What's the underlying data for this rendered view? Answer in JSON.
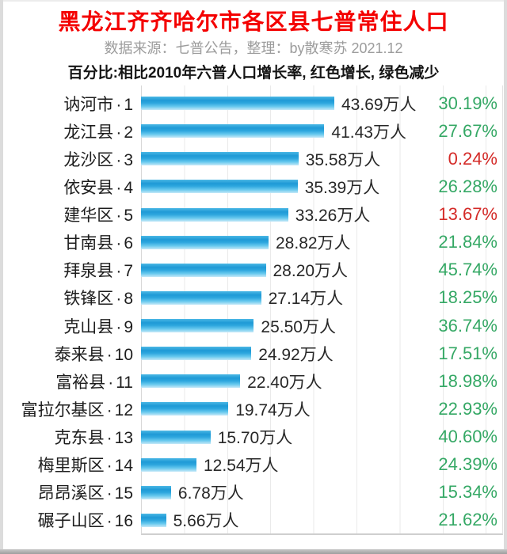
{
  "header": {
    "title": "黑龙江齐齐哈尔市各区县七普常住人口",
    "subtitle": "数据来源：七普公告，整理：by散寒苏 2021.12",
    "note": "百分比:相比2010年六普人口增长率, 红色增长, 绿色减少"
  },
  "colors": {
    "title_red": "#f40000",
    "subtitle_gray": "#9c9c9c",
    "note_black": "#151515",
    "bar_blue_dark": "#1f9ad6",
    "bar_blue_light": "#66c8ee",
    "increase": "#d42a27",
    "decrease": "#35a865"
  },
  "chart_data": {
    "type": "bar",
    "orientation": "horizontal",
    "title": "黑龙江齐齐哈尔市各区县七普常住人口",
    "unit": "万人",
    "xlim": [
      0,
      45
    ],
    "grid": true,
    "label_separator": "·",
    "rows": [
      {
        "name": "讷河市",
        "rank": 1,
        "value": 43.69,
        "value_label": "43.69万人",
        "growth": "30.19%",
        "growth_type": "decrease"
      },
      {
        "name": "龙江县",
        "rank": 2,
        "value": 41.43,
        "value_label": "41.43万人",
        "growth": "27.67%",
        "growth_type": "decrease"
      },
      {
        "name": "龙沙区",
        "rank": 3,
        "value": 35.58,
        "value_label": "35.58万人",
        "growth": "0.24%",
        "growth_type": "increase"
      },
      {
        "name": "依安县",
        "rank": 4,
        "value": 35.39,
        "value_label": "35.39万人",
        "growth": "26.28%",
        "growth_type": "decrease"
      },
      {
        "name": "建华区",
        "rank": 5,
        "value": 33.26,
        "value_label": "33.26万人",
        "growth": "13.67%",
        "growth_type": "increase"
      },
      {
        "name": "甘南县",
        "rank": 6,
        "value": 28.82,
        "value_label": "28.82万人",
        "growth": "21.84%",
        "growth_type": "decrease"
      },
      {
        "name": "拜泉县",
        "rank": 7,
        "value": 28.2,
        "value_label": "28.20万人",
        "growth": "45.74%",
        "growth_type": "decrease"
      },
      {
        "name": "铁锋区",
        "rank": 8,
        "value": 27.14,
        "value_label": "27.14万人",
        "growth": "18.25%",
        "growth_type": "decrease"
      },
      {
        "name": "克山县",
        "rank": 9,
        "value": 25.5,
        "value_label": "25.50万人",
        "growth": "36.74%",
        "growth_type": "decrease"
      },
      {
        "name": "泰来县",
        "rank": 10,
        "value": 24.92,
        "value_label": "24.92万人",
        "growth": "17.51%",
        "growth_type": "decrease"
      },
      {
        "name": "富裕县",
        "rank": 11,
        "value": 22.4,
        "value_label": "22.40万人",
        "growth": "18.98%",
        "growth_type": "decrease"
      },
      {
        "name": "富拉尔基区",
        "rank": 12,
        "value": 19.74,
        "value_label": "19.74万人",
        "growth": "22.93%",
        "growth_type": "decrease"
      },
      {
        "name": "克东县",
        "rank": 13,
        "value": 15.7,
        "value_label": "15.70万人",
        "growth": "40.60%",
        "growth_type": "decrease"
      },
      {
        "name": "梅里斯区",
        "rank": 14,
        "value": 12.54,
        "value_label": "12.54万人",
        "growth": "24.39%",
        "growth_type": "decrease"
      },
      {
        "name": "昂昂溪区",
        "rank": 15,
        "value": 6.78,
        "value_label": "6.78万人",
        "growth": "15.34%",
        "growth_type": "decrease"
      },
      {
        "name": "碾子山区",
        "rank": 16,
        "value": 5.66,
        "value_label": "5.66万人",
        "growth": "21.62%",
        "growth_type": "decrease"
      }
    ]
  }
}
